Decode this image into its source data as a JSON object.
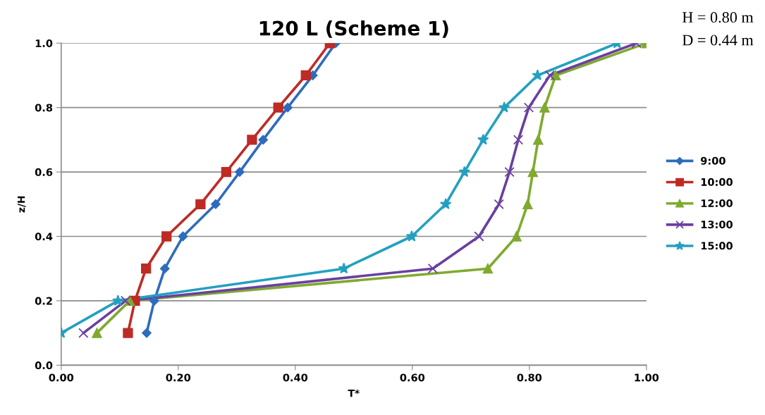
{
  "chart_data": {
    "type": "line",
    "title": "120 L (Scheme 1)",
    "xlabel": "T*",
    "ylabel": "z/H",
    "annotations": [
      "H = 0.80 m",
      "D = 0.44 m"
    ],
    "series": [
      {
        "name": "9:00",
        "color": "#2e6bbd",
        "marker": "diamond",
        "x": [
          0.146,
          0.159,
          0.177,
          0.208,
          0.264,
          0.305,
          0.345,
          0.387,
          0.43,
          0.469
        ],
        "values": [
          0.1,
          0.2,
          0.3,
          0.4,
          0.5,
          0.6,
          0.7,
          0.8,
          0.9,
          1.0
        ]
      },
      {
        "name": "10:00",
        "color": "#be2b25",
        "marker": "square",
        "x": [
          0.114,
          0.126,
          0.145,
          0.18,
          0.238,
          0.282,
          0.326,
          0.371,
          0.418,
          0.459
        ],
        "values": [
          0.1,
          0.2,
          0.3,
          0.4,
          0.5,
          0.6,
          0.7,
          0.8,
          0.9,
          1.0
        ]
      },
      {
        "name": "12:00",
        "color": "#7faa2e",
        "marker": "triangle",
        "x": [
          0.061,
          0.117,
          0.729,
          0.778,
          0.797,
          0.806,
          0.815,
          0.826,
          0.845,
          1.0
        ],
        "values": [
          0.1,
          0.2,
          0.3,
          0.4,
          0.5,
          0.6,
          0.7,
          0.8,
          0.9,
          1.0
        ]
      },
      {
        "name": "13:00",
        "color": "#6b3fa0",
        "marker": "cross",
        "x": [
          0.038,
          0.11,
          0.635,
          0.714,
          0.748,
          0.766,
          0.781,
          0.799,
          0.835,
          0.983
        ],
        "values": [
          0.1,
          0.2,
          0.3,
          0.4,
          0.5,
          0.6,
          0.7,
          0.8,
          0.9,
          1.0
        ]
      },
      {
        "name": "15:00",
        "color": "#23a0c0",
        "marker": "star",
        "x": [
          0.0,
          0.097,
          0.483,
          0.599,
          0.657,
          0.689,
          0.721,
          0.757,
          0.814,
          0.95
        ],
        "values": [
          0.1,
          0.2,
          0.3,
          0.4,
          0.5,
          0.6,
          0.7,
          0.8,
          0.9,
          1.0
        ]
      }
    ],
    "xlim": [
      0,
      1
    ],
    "ylim": [
      0,
      1
    ],
    "xticks": [
      {
        "value": 0,
        "label": "0.00"
      },
      {
        "value": 0.2,
        "label": "0.20"
      },
      {
        "value": 0.4,
        "label": "0.40"
      },
      {
        "value": 0.6,
        "label": "0.60"
      },
      {
        "value": 0.8,
        "label": "0.80"
      },
      {
        "value": 1.0,
        "label": "1.00"
      }
    ],
    "yticks": [
      {
        "value": 0,
        "label": "0.0"
      },
      {
        "value": 0.2,
        "label": "0.2"
      },
      {
        "value": 0.4,
        "label": "0.4"
      },
      {
        "value": 0.6,
        "label": "0.6"
      },
      {
        "value": 0.8,
        "label": "0.8"
      },
      {
        "value": 1.0,
        "label": "1.0"
      }
    ],
    "grid": "y",
    "legend": "right",
    "line_style": "solid"
  }
}
